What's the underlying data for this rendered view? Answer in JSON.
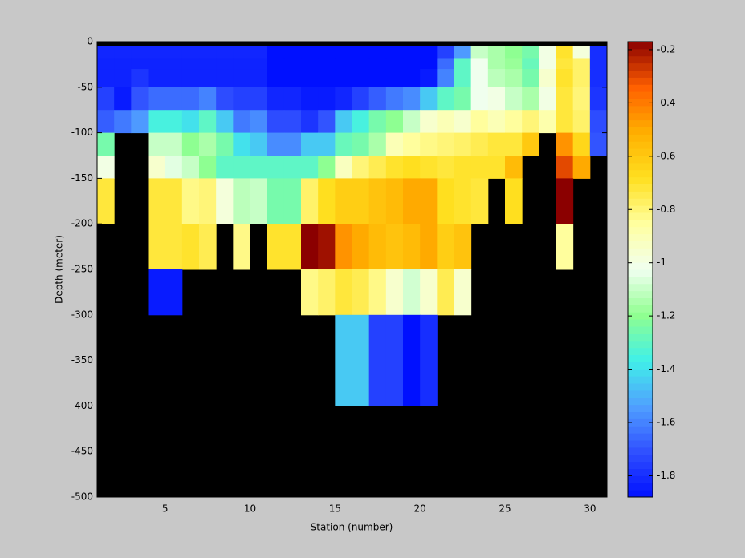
{
  "chart_data": {
    "type": "heatmap",
    "xlabel": "Station (number)",
    "ylabel": "Depth (meter)",
    "x": [
      1,
      2,
      3,
      4,
      5,
      6,
      7,
      8,
      9,
      10,
      11,
      12,
      13,
      14,
      15,
      16,
      17,
      18,
      19,
      20,
      21,
      22,
      23,
      24,
      25,
      26,
      27,
      28,
      29,
      30,
      31
    ],
    "y": [
      -5,
      -18,
      -30,
      -50,
      -75,
      -100,
      -125,
      -150,
      -200,
      -250,
      -300,
      -400
    ],
    "values": [
      [
        -1.82,
        -1.82,
        -1.82,
        -1.82,
        -1.82,
        -1.82,
        -1.82,
        -1.82,
        -1.82,
        -1.82,
        -1.88,
        -1.88,
        -1.88,
        -1.88,
        -1.88,
        -1.88,
        -1.88,
        -1.88,
        -1.88,
        -1.88,
        -1.75,
        -1.55,
        -1.1,
        -1.15,
        -1.2,
        -1.25,
        -1.0,
        -0.7,
        -0.98,
        -1.8
      ],
      [
        -1.83,
        -1.83,
        -1.83,
        -1.83,
        -1.83,
        -1.83,
        -1.83,
        -1.83,
        -1.83,
        -1.83,
        -1.88,
        -1.88,
        -1.88,
        -1.88,
        -1.88,
        -1.88,
        -1.88,
        -1.88,
        -1.88,
        -1.88,
        -1.65,
        -1.3,
        -1.02,
        -1.15,
        -1.18,
        -1.28,
        -1.0,
        -0.72,
        -0.78,
        -1.8
      ],
      [
        -1.83,
        -1.83,
        -1.78,
        -1.83,
        -1.83,
        -1.83,
        -1.83,
        -1.83,
        -1.83,
        -1.83,
        -1.88,
        -1.88,
        -1.88,
        -1.88,
        -1.88,
        -1.88,
        -1.88,
        -1.88,
        -1.88,
        -1.85,
        -1.6,
        -1.3,
        -1.02,
        -1.12,
        -1.15,
        -1.25,
        -0.95,
        -0.7,
        -0.78,
        -1.8
      ],
      [
        -1.75,
        -1.85,
        -1.7,
        -1.65,
        -1.65,
        -1.65,
        -1.6,
        -1.72,
        -1.75,
        -1.75,
        -1.82,
        -1.82,
        -1.85,
        -1.85,
        -1.82,
        -1.75,
        -1.68,
        -1.62,
        -1.58,
        -1.45,
        -1.3,
        -1.25,
        -1.02,
        -1.0,
        -1.1,
        -1.15,
        -1.0,
        -0.72,
        -0.8,
        -1.78
      ],
      [
        -1.68,
        -1.62,
        -1.55,
        -1.35,
        -1.35,
        -1.4,
        -1.3,
        -1.45,
        -1.62,
        -1.58,
        -1.72,
        -1.72,
        -1.78,
        -1.7,
        -1.45,
        -1.35,
        -1.25,
        -1.2,
        -1.1,
        -0.95,
        -0.9,
        -0.95,
        -0.85,
        -0.9,
        -0.85,
        -0.8,
        -0.88,
        -0.72,
        -0.78,
        -1.72
      ],
      [
        -1.25,
        null,
        null,
        -1.1,
        -1.1,
        -1.2,
        -1.15,
        -1.25,
        -1.4,
        -1.45,
        -1.58,
        -1.58,
        -1.45,
        -1.45,
        -1.28,
        -1.25,
        -1.15,
        -0.9,
        -0.85,
        -0.82,
        -0.8,
        -0.78,
        -0.75,
        -0.72,
        -0.72,
        -0.6,
        null,
        -0.45,
        -0.65,
        -1.7
      ],
      [
        -1.0,
        null,
        null,
        -0.95,
        -1.05,
        -1.1,
        -1.2,
        -1.3,
        -1.3,
        -1.3,
        -1.3,
        -1.3,
        -1.3,
        -1.2,
        -0.92,
        -0.8,
        -0.75,
        -0.7,
        -0.68,
        -0.7,
        -0.72,
        -0.7,
        -0.7,
        -0.7,
        -0.55,
        null,
        null,
        -0.3,
        -0.5,
        null
      ],
      [
        -0.72,
        null,
        null,
        -0.72,
        -0.72,
        -0.82,
        -0.8,
        -0.98,
        -1.12,
        -1.1,
        -1.25,
        -1.25,
        -0.78,
        -0.68,
        -0.62,
        -0.62,
        -0.58,
        -0.55,
        -0.5,
        -0.5,
        -0.68,
        -0.7,
        -0.72,
        null,
        -0.68,
        null,
        null,
        -0.17,
        null,
        null
      ],
      [
        null,
        null,
        null,
        -0.72,
        -0.72,
        -0.7,
        -0.75,
        null,
        -0.82,
        null,
        -0.7,
        -0.7,
        -0.17,
        -0.2,
        -0.45,
        -0.5,
        -0.55,
        -0.58,
        -0.55,
        -0.5,
        -0.62,
        -0.58,
        null,
        null,
        null,
        null,
        null,
        -0.85,
        null,
        null
      ],
      [
        null,
        null,
        null,
        -1.85,
        -1.85,
        null,
        null,
        null,
        null,
        null,
        null,
        null,
        -0.82,
        -0.78,
        -0.72,
        -0.75,
        -0.82,
        -0.95,
        -1.08,
        -0.95,
        -0.75,
        -0.95,
        null,
        null,
        null,
        null,
        null,
        null,
        null,
        null
      ],
      [
        null,
        null,
        null,
        null,
        null,
        null,
        null,
        null,
        null,
        null,
        null,
        null,
        null,
        null,
        -1.45,
        -1.45,
        -1.75,
        -1.75,
        -1.88,
        -1.8,
        null,
        null,
        null,
        null,
        null,
        null,
        null,
        null,
        null,
        null
      ]
    ],
    "xlim": [
      1,
      31
    ],
    "xticks": [
      5,
      10,
      15,
      20,
      25,
      30
    ],
    "ylim": [
      -500,
      0
    ],
    "yticks": [
      0,
      -50,
      -100,
      -150,
      -200,
      -250,
      -300,
      -350,
      -400,
      -450,
      -500
    ],
    "clim": [
      -1.88,
      -0.17
    ],
    "cticks": [
      -0.2,
      -0.4,
      -0.6,
      -0.8,
      -1,
      -1.2,
      -1.4,
      -1.6,
      -1.8
    ],
    "colormap": [
      "#0010ff",
      "#3050ff",
      "#50a0ff",
      "#40f0e8",
      "#90ff90",
      "#f0fff0",
      "#ffffa0",
      "#ffe020",
      "#ffb000",
      "#ff6000",
      "#8b0000"
    ],
    "missing_color": "#000000"
  }
}
